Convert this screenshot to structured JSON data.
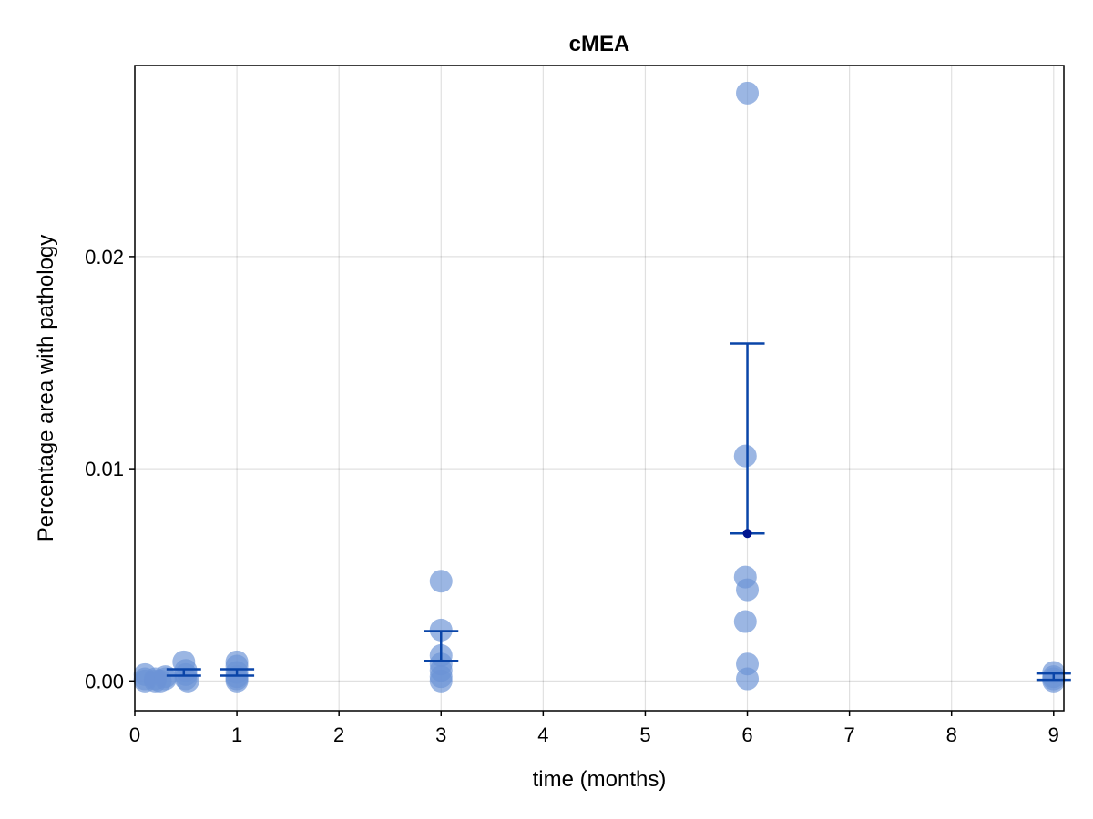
{
  "chart_data": {
    "type": "scatter",
    "title": "cMEA",
    "xlabel": "time (months)",
    "ylabel": "Percentage area with pathology",
    "xlim": [
      0,
      9.1
    ],
    "ylim": [
      -0.0014,
      0.029
    ],
    "xticks": [
      0,
      1,
      2,
      3,
      4,
      5,
      6,
      7,
      8,
      9
    ],
    "xtick_labels": [
      "0",
      "1",
      "2",
      "3",
      "4",
      "5",
      "6",
      "7",
      "8",
      "9"
    ],
    "yticks": [
      0.0,
      0.01,
      0.02
    ],
    "ytick_labels": [
      "0.00",
      "0.01",
      "0.02"
    ],
    "grid": true,
    "colors": {
      "points": "#6b93d6",
      "error_bars": "#0a45a8",
      "mean_marker": "#00158f"
    },
    "series": [
      {
        "points": [
          {
            "x": 0.1,
            "y": 0.0001
          },
          {
            "x": 0.1,
            "y": 0.0003
          },
          {
            "x": 0.1,
            "y": 0.0
          },
          {
            "x": 0.2,
            "y": 0.0
          },
          {
            "x": 0.2,
            "y": 0.0001
          },
          {
            "x": 0.25,
            "y": 0.0
          },
          {
            "x": 0.3,
            "y": 0.0002
          },
          {
            "x": 0.3,
            "y": 0.0001
          },
          {
            "x": 0.48,
            "y": 0.0009
          },
          {
            "x": 0.5,
            "y": 0.0005
          },
          {
            "x": 0.5,
            "y": 0.0003
          },
          {
            "x": 0.5,
            "y": 0.0001
          },
          {
            "x": 0.52,
            "y": 0.0
          },
          {
            "x": 1.0,
            "y": 0.0009
          },
          {
            "x": 1.0,
            "y": 0.0007
          },
          {
            "x": 1.0,
            "y": 0.0004
          },
          {
            "x": 1.0,
            "y": 0.0002
          },
          {
            "x": 1.0,
            "y": 0.0001
          },
          {
            "x": 1.0,
            "y": 0.0
          },
          {
            "x": 3.0,
            "y": 0.0047
          },
          {
            "x": 3.0,
            "y": 0.0024
          },
          {
            "x": 3.0,
            "y": 0.0012
          },
          {
            "x": 3.0,
            "y": 0.0008
          },
          {
            "x": 3.0,
            "y": 0.0005
          },
          {
            "x": 3.0,
            "y": 0.0002
          },
          {
            "x": 3.0,
            "y": 0.0
          },
          {
            "x": 6.0,
            "y": 0.0277
          },
          {
            "x": 5.98,
            "y": 0.0106
          },
          {
            "x": 5.98,
            "y": 0.0049
          },
          {
            "x": 6.0,
            "y": 0.0043
          },
          {
            "x": 5.98,
            "y": 0.0028
          },
          {
            "x": 6.0,
            "y": 0.0008
          },
          {
            "x": 6.0,
            "y": 0.0001
          },
          {
            "x": 9.0,
            "y": 0.0004
          },
          {
            "x": 9.0,
            "y": 0.0002
          },
          {
            "x": 9.0,
            "y": 0.0001
          },
          {
            "x": 9.0,
            "y": 0.0
          }
        ]
      }
    ],
    "error_bars": [
      {
        "x": 0.48,
        "low": 0.00025,
        "high": 0.00055
      },
      {
        "x": 1.0,
        "low": 0.00025,
        "high": 0.00055
      },
      {
        "x": 3.0,
        "low": 0.00095,
        "high": 0.00235
      },
      {
        "x": 6.0,
        "low": 0.00695,
        "high": 0.0159,
        "mean": 0.00695
      },
      {
        "x": 9.0,
        "low": 5e-05,
        "high": 0.00035
      }
    ]
  }
}
